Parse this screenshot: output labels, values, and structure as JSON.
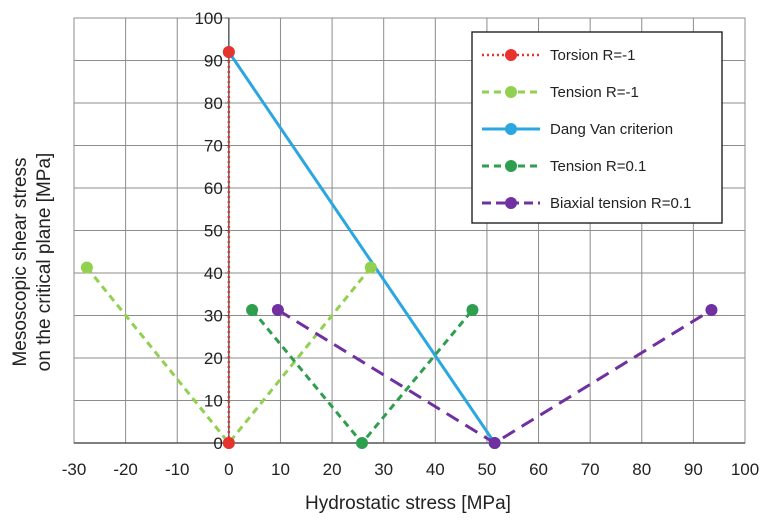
{
  "chart_data": {
    "type": "line",
    "title": "",
    "xlabel": "Hydrostatic stress [MPa]",
    "ylabel_line1": "Mesoscopic shear stress",
    "ylabel_line2": "on the critical plane [MPa]",
    "xlim": [
      -30,
      100
    ],
    "ylim": [
      0,
      100
    ],
    "x_ticks": [
      -30,
      -20,
      -10,
      0,
      10,
      20,
      30,
      40,
      50,
      60,
      70,
      80,
      90,
      100
    ],
    "y_ticks": [
      0,
      10,
      20,
      30,
      40,
      50,
      60,
      70,
      80,
      90,
      100
    ],
    "grid": true,
    "legend_position": "top-right",
    "series": [
      {
        "name": "Torsion R=-1",
        "color": "#e8322e",
        "style": "dotted",
        "x": [
          0,
          0
        ],
        "y": [
          0,
          92
        ]
      },
      {
        "name": "Tension R=-1",
        "color": "#92d050",
        "style": "dashed",
        "x": [
          -27.5,
          0,
          27.5
        ],
        "y": [
          41.3,
          0,
          41.3
        ]
      },
      {
        "name": "Dang Van criterion",
        "color": "#2aa7e0",
        "style": "solid",
        "x": [
          0,
          51.5
        ],
        "y": [
          92,
          0
        ]
      },
      {
        "name": "Tension R=0.1",
        "color": "#2e9e4f",
        "style": "dashed",
        "x": [
          4.5,
          25.8,
          47.2
        ],
        "y": [
          31.3,
          0,
          31.3
        ]
      },
      {
        "name": "Biaxial tension R=0.1",
        "color": "#7030a0",
        "style": "longdash",
        "x": [
          9.5,
          51.5,
          93.5
        ],
        "y": [
          31.3,
          0,
          31.3
        ]
      }
    ]
  }
}
